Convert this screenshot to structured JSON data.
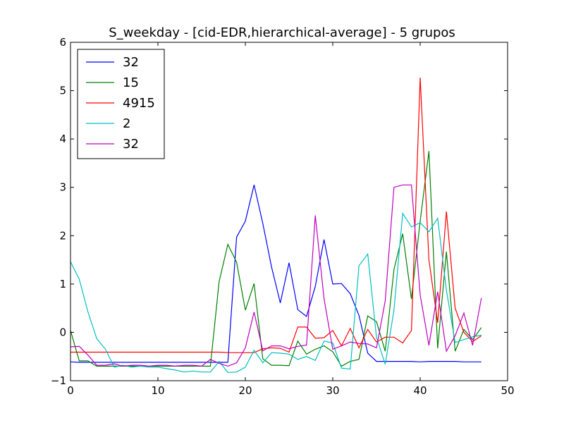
{
  "chart_data": {
    "type": "line",
    "title": "S_weekday - [cid-EDR,hierarchical-average] - 5 grupos",
    "xlabel": "",
    "ylabel": "",
    "xlim": [
      0,
      50
    ],
    "ylim": [
      -1,
      6
    ],
    "xticks": [
      0,
      10,
      20,
      30,
      40,
      50
    ],
    "yticks": [
      -1,
      0,
      1,
      2,
      3,
      4,
      5,
      6
    ],
    "xtick_labels": [
      "0",
      "10",
      "20",
      "30",
      "40",
      "50"
    ],
    "ytick_labels": [
      "−1",
      "0",
      "1",
      "2",
      "3",
      "4",
      "5",
      "6"
    ],
    "grid": false,
    "legend_position": "upper-left",
    "x": [
      0,
      1,
      2,
      3,
      4,
      5,
      6,
      7,
      8,
      9,
      10,
      11,
      12,
      13,
      14,
      15,
      16,
      17,
      18,
      19,
      20,
      21,
      22,
      23,
      24,
      25,
      26,
      27,
      28,
      29,
      30,
      31,
      32,
      33,
      34,
      35,
      36,
      37,
      38,
      39,
      40,
      41,
      42,
      43,
      44,
      45,
      46,
      47
    ],
    "series": [
      {
        "name": "32",
        "color": "#0000ff",
        "values": [
          -0.61,
          -0.62,
          -0.62,
          -0.62,
          -0.62,
          -0.62,
          -0.62,
          -0.62,
          -0.62,
          -0.62,
          -0.62,
          -0.62,
          -0.62,
          -0.62,
          -0.62,
          -0.62,
          -0.62,
          -0.62,
          -0.62,
          1.97,
          2.3,
          3.05,
          2.25,
          1.35,
          0.61,
          1.44,
          0.47,
          0.33,
          0.95,
          1.92,
          1.0,
          1.01,
          0.8,
          0.35,
          -0.43,
          -0.6,
          -0.6,
          -0.6,
          -0.6,
          -0.6,
          -0.61,
          -0.6,
          -0.6,
          -0.6,
          -0.6,
          -0.61,
          -0.61,
          -0.61
        ]
      },
      {
        "name": "15",
        "color": "#008000",
        "values": [
          0.04,
          -0.59,
          -0.59,
          -0.7,
          -0.7,
          -0.7,
          -0.7,
          -0.7,
          -0.7,
          -0.7,
          -0.7,
          -0.7,
          -0.7,
          -0.7,
          -0.7,
          -0.7,
          -0.7,
          1.05,
          1.82,
          1.45,
          0.46,
          1.01,
          -0.55,
          -0.68,
          -0.68,
          -0.69,
          -0.18,
          -0.45,
          -0.35,
          -0.28,
          -0.4,
          -0.7,
          -0.6,
          -0.56,
          0.34,
          0.22,
          -0.39,
          1.3,
          2.04,
          0.69,
          2.3,
          3.75,
          -0.33,
          1.67,
          -0.39,
          0.06,
          -0.15,
          0.1
        ]
      },
      {
        "name": "4915",
        "color": "#ff0000",
        "values": [
          -0.41,
          -0.41,
          -0.41,
          -0.41,
          -0.41,
          -0.41,
          -0.41,
          -0.41,
          -0.41,
          -0.41,
          -0.41,
          -0.41,
          -0.41,
          -0.41,
          -0.41,
          -0.41,
          -0.41,
          -0.41,
          -0.42,
          -0.42,
          -0.42,
          -0.42,
          -0.34,
          -0.32,
          -0.33,
          -0.41,
          0.11,
          0.11,
          -0.12,
          -0.11,
          0.04,
          -0.28,
          0.08,
          -0.32,
          0.06,
          -0.2,
          -0.1,
          -0.1,
          -0.22,
          0.04,
          5.27,
          1.5,
          0.2,
          2.5,
          0.5,
          0.0,
          -0.19,
          -0.07
        ]
      },
      {
        "name": "2",
        "color": "#00bfbf",
        "values": [
          1.46,
          1.1,
          0.42,
          -0.13,
          -0.35,
          -0.72,
          -0.68,
          -0.72,
          -0.7,
          -0.72,
          -0.72,
          -0.75,
          -0.78,
          -0.82,
          -0.8,
          -0.82,
          -0.82,
          -0.6,
          -0.83,
          -0.82,
          -0.72,
          -0.37,
          -0.63,
          -0.42,
          -0.43,
          -0.45,
          -0.56,
          -0.5,
          -0.58,
          -0.18,
          -0.22,
          -0.74,
          -0.76,
          1.38,
          1.62,
          -0.1,
          -0.66,
          0.46,
          2.46,
          2.18,
          2.27,
          2.08,
          2.36,
          0.87,
          -0.21,
          -0.15,
          -0.09,
          -0.06
        ]
      },
      {
        "name": "32",
        "color": "#bf00bf",
        "values": [
          -0.3,
          -0.29,
          -0.47,
          -0.68,
          -0.68,
          -0.65,
          -0.7,
          -0.68,
          -0.68,
          -0.7,
          -0.68,
          -0.68,
          -0.7,
          -0.68,
          -0.68,
          -0.7,
          -0.56,
          -0.64,
          -0.7,
          -0.63,
          -0.32,
          0.42,
          -0.38,
          -0.28,
          -0.28,
          -0.34,
          -0.29,
          -0.26,
          2.42,
          0.7,
          -0.35,
          -0.28,
          -0.2,
          -0.23,
          -0.24,
          -0.32,
          0.65,
          3.0,
          3.05,
          3.05,
          0.77,
          -0.27,
          0.84,
          -0.39,
          -0.07,
          0.4,
          -0.27,
          0.71
        ]
      }
    ]
  }
}
